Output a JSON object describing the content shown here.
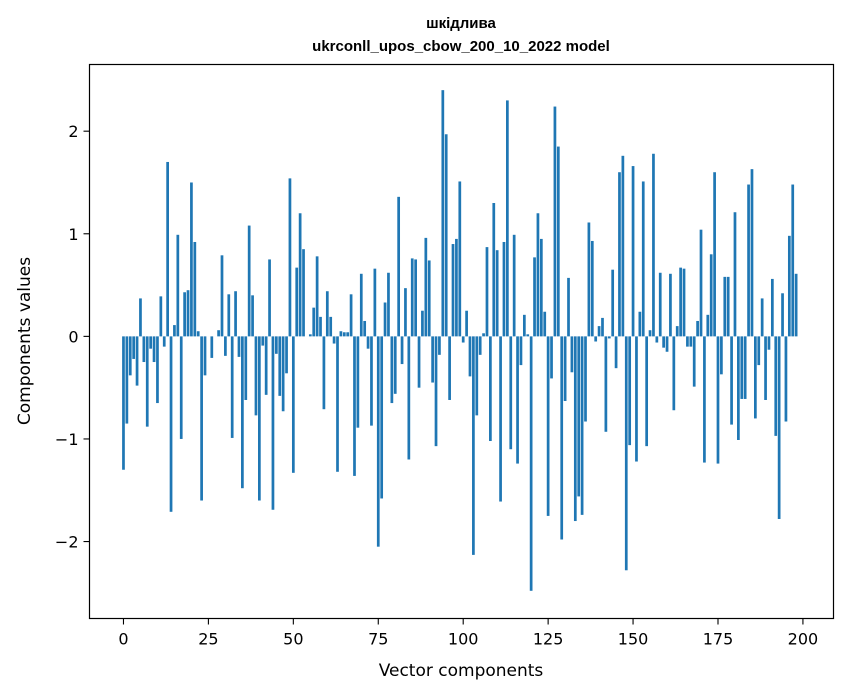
{
  "chart_data": {
    "type": "bar",
    "title": "шкідлива",
    "subtitle": "ukrconll_upos_cbow_200_10_2022 model",
    "xlabel": "Vector components",
    "ylabel": "Components values",
    "xlim": [
      -10,
      209
    ],
    "ylim": [
      -2.75,
      2.65
    ],
    "xticks": [
      0,
      25,
      50,
      75,
      100,
      125,
      150,
      175,
      200
    ],
    "xtick_labels": [
      "0",
      "25",
      "50",
      "75",
      "100",
      "125",
      "150",
      "175",
      "200"
    ],
    "yticks": [
      -2,
      -1,
      0,
      1,
      2
    ],
    "ytick_labels": [
      "−2",
      "−1",
      "0",
      "1",
      "2"
    ],
    "bar_color": "#1f77b4",
    "values": [
      -1.3,
      -0.85,
      -0.38,
      -0.22,
      -0.48,
      0.37,
      -0.25,
      -0.88,
      -0.12,
      -0.25,
      -0.65,
      0.39,
      -0.1,
      1.7,
      -1.71,
      0.11,
      0.99,
      -1.0,
      0.43,
      0.45,
      1.5,
      0.92,
      0.05,
      -1.6,
      -0.38,
      0.0,
      -0.21,
      0.0,
      0.06,
      0.79,
      -0.19,
      0.41,
      -0.99,
      0.44,
      -0.2,
      -1.48,
      -0.62,
      1.08,
      0.4,
      -0.77,
      -1.6,
      -0.09,
      -0.57,
      0.75,
      -1.69,
      -0.17,
      -0.58,
      -0.73,
      -0.36,
      1.54,
      -1.33,
      0.67,
      1.2,
      0.85,
      0.0,
      0.02,
      0.28,
      0.78,
      0.19,
      -0.71,
      0.44,
      0.19,
      -0.07,
      -1.32,
      0.05,
      0.04,
      0.04,
      0.41,
      -1.36,
      -0.89,
      0.61,
      0.15,
      -0.12,
      -0.87,
      0.66,
      -2.05,
      -1.58,
      0.33,
      0.62,
      -0.65,
      -0.56,
      1.36,
      -0.27,
      0.47,
      -1.2,
      0.76,
      0.75,
      -0.5,
      0.25,
      0.96,
      0.74,
      -0.45,
      -1.07,
      -0.18,
      2.4,
      1.97,
      -0.62,
      0.9,
      0.95,
      1.51,
      -0.06,
      0.25,
      -0.39,
      -2.13,
      -0.77,
      -0.18,
      0.03,
      0.87,
      -1.02,
      1.3,
      0.84,
      -1.61,
      0.92,
      2.3,
      -1.1,
      0.99,
      -1.24,
      -0.28,
      0.21,
      0.02,
      -2.48,
      0.77,
      1.2,
      0.95,
      0.24,
      -1.75,
      -0.41,
      2.24,
      1.85,
      -1.98,
      -0.63,
      0.57,
      -0.35,
      -1.8,
      -1.56,
      -1.74,
      -0.83,
      1.11,
      0.93,
      -0.05,
      0.1,
      0.18,
      -0.93,
      -0.02,
      0.65,
      -0.31,
      1.6,
      1.76,
      -2.28,
      -1.06,
      1.66,
      -1.22,
      0.24,
      1.51,
      -1.07,
      0.06,
      1.78,
      -0.06,
      0.62,
      -0.11,
      -0.15,
      0.61,
      -0.72,
      0.1,
      0.67,
      0.66,
      -0.1,
      -0.1,
      -0.49,
      0.15,
      1.04,
      -1.23,
      0.21,
      0.8,
      1.6,
      -1.24,
      -0.37,
      0.58,
      0.58,
      -0.86,
      1.21,
      -1.01,
      -0.61,
      -0.61,
      1.48,
      1.63,
      -0.8,
      -0.28,
      0.37,
      -0.62,
      -0.13,
      0.56,
      -0.97,
      -1.78,
      0.42,
      -0.83,
      0.98,
      1.48,
      0.61
    ]
  }
}
